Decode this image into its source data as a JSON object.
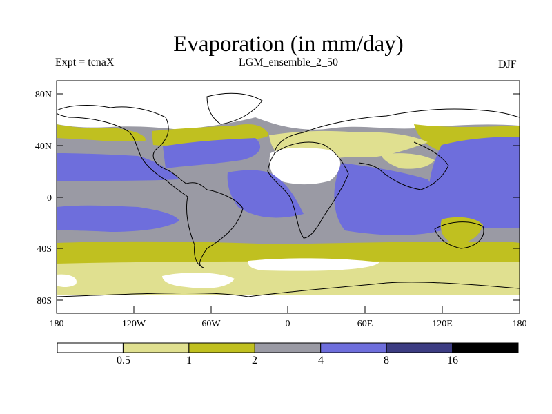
{
  "title": "Evaporation (in mm/day)",
  "experiment_label": "Expt = tcnaX",
  "run_label": "LGM_ensemble_2_50",
  "season_label": "DJF",
  "map": {
    "y_axis": {
      "ticks": [
        "80N",
        "40N",
        "0",
        "40S",
        "80S"
      ]
    },
    "x_axis": {
      "ticks": [
        "180",
        "120W",
        "60W",
        "0",
        "60E",
        "120E",
        "180"
      ]
    },
    "lon_range": [
      -180,
      180
    ],
    "lat_range": [
      -90,
      90
    ]
  },
  "colorbar": {
    "units": "mm/day",
    "boundaries": [
      "0.5",
      "1",
      "2",
      "4",
      "8",
      "16"
    ],
    "colors": [
      "#ffffff",
      "#e0e090",
      "#c0c020",
      "#9a9aa4",
      "#6e6edc",
      "#3c3c82",
      "#000000"
    ]
  },
  "legend_colors": {
    "white": "#ffffff",
    "pale_yellow": "#e0e090",
    "olive": "#c0c020",
    "gray": "#9a9aa4",
    "blue": "#6e6edc"
  }
}
